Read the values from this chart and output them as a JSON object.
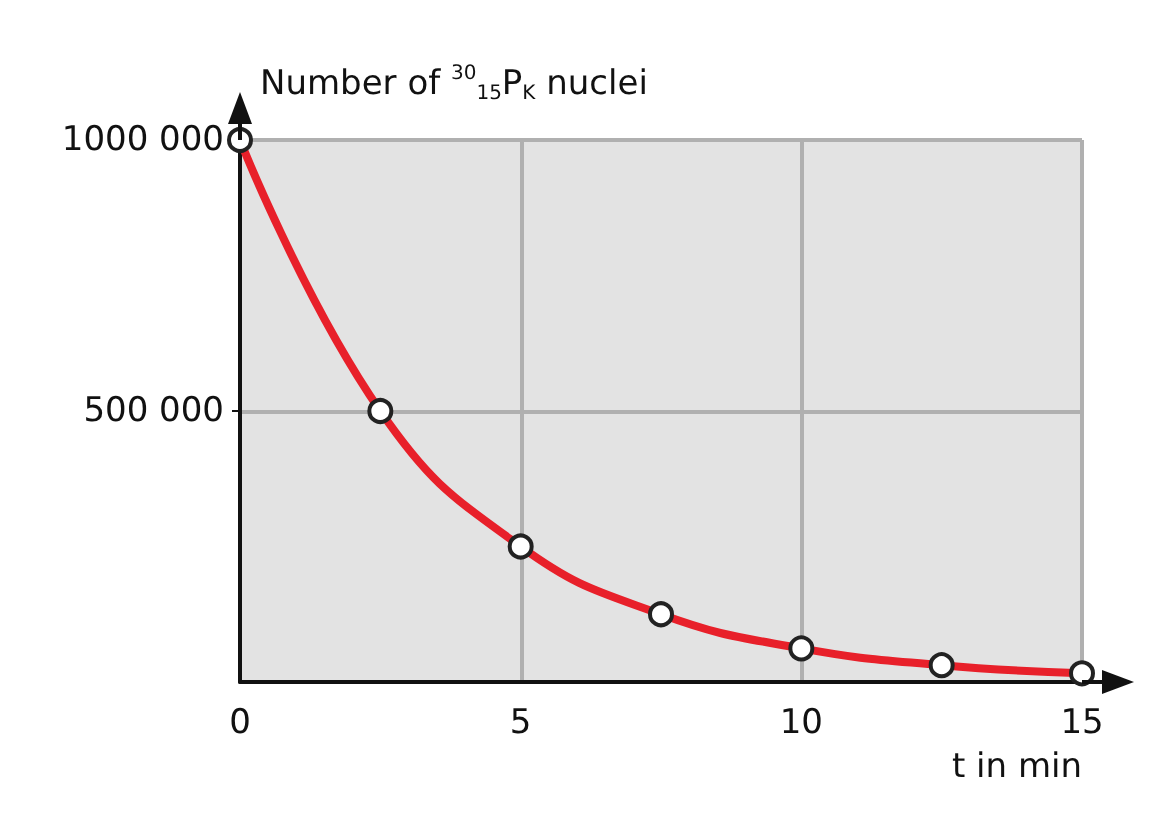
{
  "chart_data": {
    "type": "line",
    "ylabel": "Number of $^{30}$$_{15}$P$_{K}$ nuclei",
    "xlabel": "t in min",
    "x": [
      0,
      2.5,
      5,
      7.5,
      10,
      12.5,
      15
    ],
    "series": [
      {
        "color": "#e8202a",
        "values": [
          1000000,
          500000,
          250000,
          125000,
          62000,
          31000,
          16000
        ]
      }
    ],
    "xlim": [
      0,
      15
    ],
    "xticks": [
      0,
      5,
      10,
      15
    ],
    "ylim": [
      0,
      1000000
    ],
    "yticks": [
      {
        "value": 500000,
        "label": "500 000"
      },
      {
        "value": 1000000,
        "label": "1000 000"
      }
    ],
    "grid": true,
    "marker": "circle",
    "line_style": "solid"
  }
}
